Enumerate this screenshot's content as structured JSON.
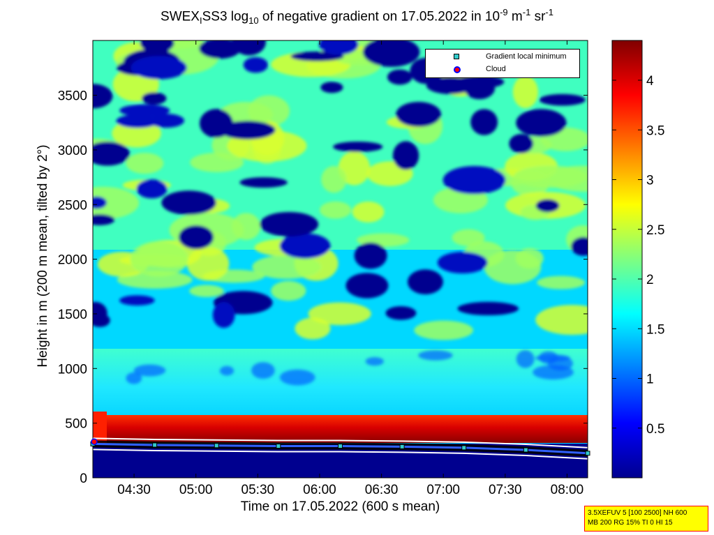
{
  "title": {
    "prefix": "SWEX",
    "sub1": "I",
    "mid1": "SS3 log",
    "sub2": "10",
    "mid2": " of negative gradient on 17.05.2022 in 10",
    "sup1": "-9",
    "mid3": " m",
    "sup2": "-1",
    "mid4": " sr",
    "sup3": "-1"
  },
  "legend": {
    "items": [
      {
        "label": "Gradient local minimum",
        "color": "#33cccc",
        "edge": "#000000"
      },
      {
        "label": "Cloud",
        "color": "#ff0000",
        "edge": "#0000ff"
      }
    ]
  },
  "infobox": {
    "line1": "3.5XEFUV 5 [100 2500] NH 600",
    "line2": "MB 200 RG 15% TI 0 HI 15"
  },
  "chart_data": {
    "type": "heatmap",
    "title": "SWEX_I SS3 log10 of negative gradient on 17.05.2022 in 10^-9 m^-1 sr^-1",
    "xlabel": "Time on 17.05.2022 (600 s mean)",
    "ylabel": "Height in m (200 m mean, tilted by 2°)",
    "x_range": [
      "04:10",
      "08:10"
    ],
    "x_ticks": [
      "04:30",
      "05:00",
      "05:30",
      "06:00",
      "06:30",
      "07:00",
      "07:30",
      "08:00"
    ],
    "ylim": [
      0,
      4000
    ],
    "y_ticks": [
      0,
      500,
      1000,
      1500,
      2000,
      2500,
      3000,
      3500
    ],
    "colorbar": {
      "range": [
        0,
        4.4
      ],
      "ticks": [
        0.5,
        1,
        1.5,
        2,
        2.5,
        3,
        3.5,
        4
      ],
      "colormap": "jet"
    },
    "structure": {
      "ground_layer_below_m": 250,
      "red_gradient_band_m": [
        280,
        560
      ],
      "cyan_layer_m": [
        600,
        1000
      ],
      "patchy_layer_m": [
        1000,
        3950
      ]
    },
    "gradient_local_minimum": {
      "times": [
        "04:10",
        "04:40",
        "05:10",
        "05:40",
        "06:10",
        "06:40",
        "07:10",
        "07:40",
        "08:10"
      ],
      "heights": [
        310,
        300,
        295,
        290,
        290,
        285,
        275,
        255,
        225
      ]
    },
    "cloud": {
      "times": [
        "04:10"
      ],
      "heights": [
        330
      ]
    }
  }
}
